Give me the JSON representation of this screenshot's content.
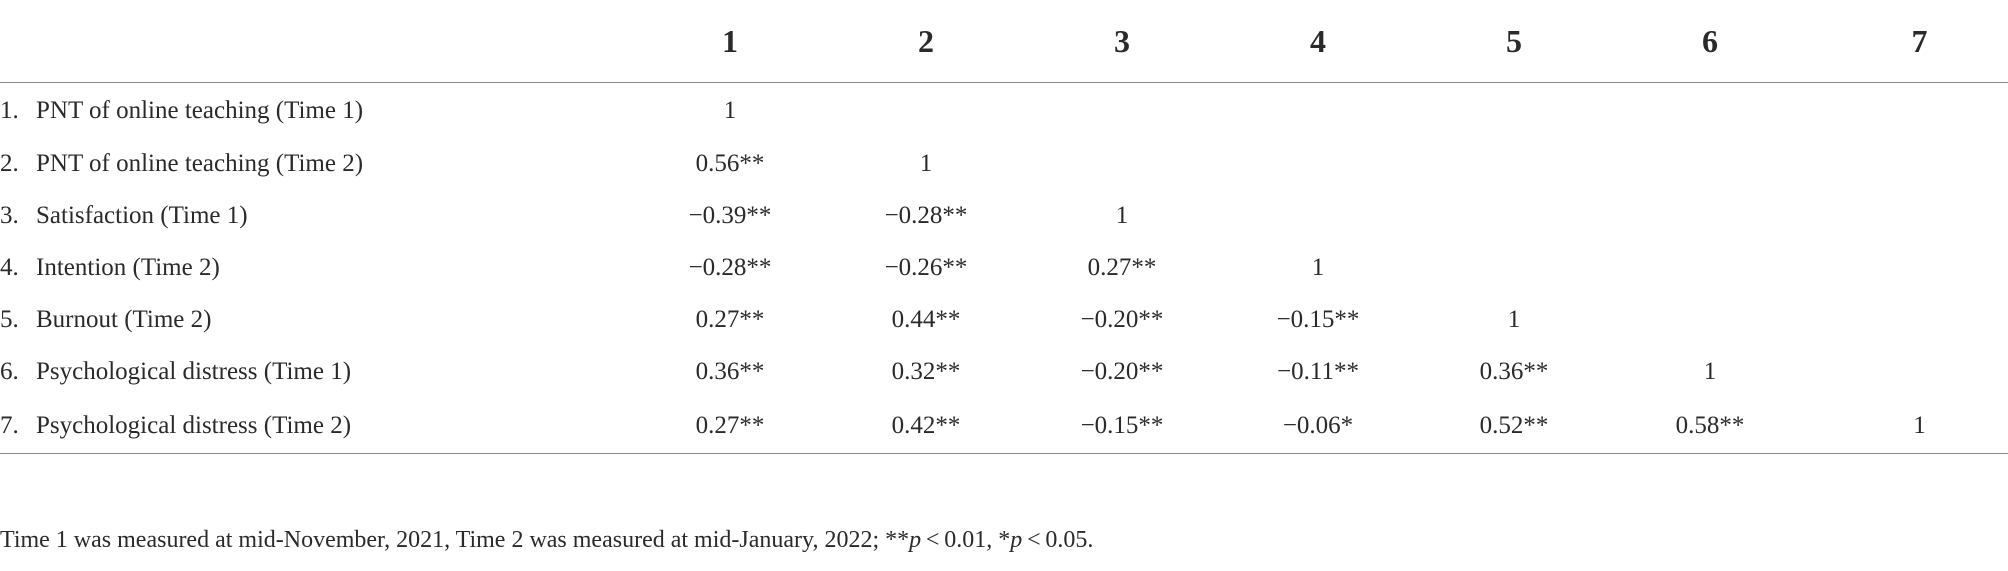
{
  "table": {
    "columns": [
      "",
      "1",
      "2",
      "3",
      "4",
      "5",
      "6",
      "7"
    ],
    "rows": [
      {
        "num": "1.",
        "label": "PNT of online teaching (Time 1)",
        "cells": [
          "1",
          "",
          "",
          "",
          "",
          "",
          ""
        ]
      },
      {
        "num": "2.",
        "label": "PNT of online teaching (Time 2)",
        "cells": [
          "0.56**",
          "1",
          "",
          "",
          "",
          "",
          ""
        ]
      },
      {
        "num": "3.",
        "label": "Satisfaction (Time 1)",
        "cells": [
          "−0.39**",
          "−0.28**",
          "1",
          "",
          "",
          "",
          ""
        ]
      },
      {
        "num": "4.",
        "label": "Intention (Time 2)",
        "cells": [
          "−0.28**",
          "−0.26**",
          "0.27**",
          "1",
          "",
          "",
          ""
        ]
      },
      {
        "num": "5.",
        "label": "Burnout (Time 2)",
        "cells": [
          "0.27**",
          "0.44**",
          "−0.20**",
          "−0.15**",
          "1",
          "",
          ""
        ]
      },
      {
        "num": "6.",
        "label": "Psychological distress (Time 1)",
        "cells": [
          "0.36**",
          "0.32**",
          "−0.20**",
          "−0.11**",
          "0.36**",
          "1",
          ""
        ]
      },
      {
        "num": "7.",
        "label": "Psychological distress (Time 2)",
        "cells": [
          "0.27**",
          "0.42**",
          "−0.15**",
          "−0.06*",
          "0.52**",
          "0.58**",
          "1"
        ]
      }
    ]
  },
  "footnote": {
    "text_1": "Time 1 was measured at mid-November, 2021, Time 2 was measured at mid-January, 2022; **",
    "p1": "p",
    "text_2": " < 0.01, *",
    "p2": "p",
    "text_3": " < 0.05."
  }
}
